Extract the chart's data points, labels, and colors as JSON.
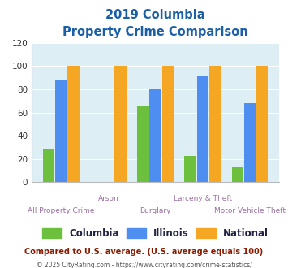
{
  "title_line1": "2019 Columbia",
  "title_line2": "Property Crime Comparison",
  "categories": [
    "All Property Crime",
    "Arson",
    "Burglary",
    "Larceny & Theft",
    "Motor Vehicle Theft"
  ],
  "columbia": [
    28,
    0,
    65,
    23,
    13
  ],
  "illinois": [
    88,
    0,
    80,
    92,
    68
  ],
  "national": [
    100,
    100,
    100,
    100,
    100
  ],
  "columbia_color": "#6dbf3e",
  "illinois_color": "#4d8ef0",
  "national_color": "#f5a623",
  "ylim": [
    0,
    120
  ],
  "yticks": [
    0,
    20,
    40,
    60,
    80,
    100,
    120
  ],
  "plot_bg": "#ddeef5",
  "legend_labels": [
    "Columbia",
    "Illinois",
    "National"
  ],
  "footnote1": "Compared to U.S. average. (U.S. average equals 100)",
  "footnote2_black": "© 2025 CityRating.com - ",
  "footnote2_blue": "https://www.cityrating.com/crime-statistics/",
  "title_color": "#1a5fa8",
  "xlabel_color": "#9b6fa0",
  "footnote1_color": "#8b1a00",
  "footnote2_color": "#555555",
  "footnote2_link_color": "#4d8ef0"
}
